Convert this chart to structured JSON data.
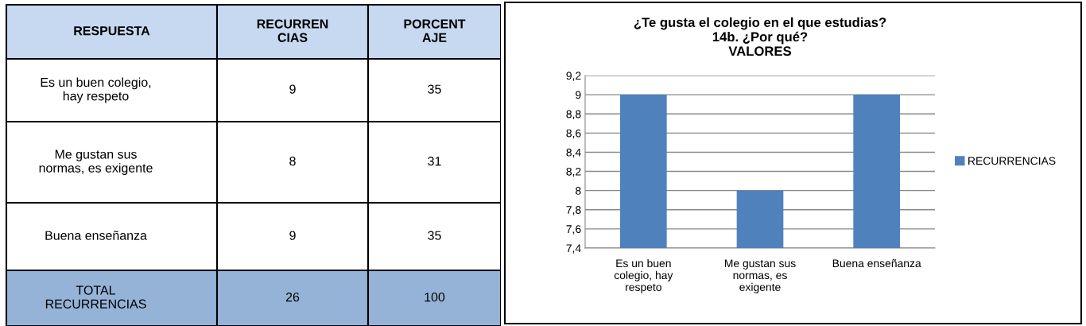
{
  "chart_data": [
    {
      "type": "other",
      "categories": [
        "RESPUESTA",
        "RECURREN\nCIAS",
        "PORCENT\nAJE"
      ],
      "y_categories": [
        "Es un buen colegio,\nhay respeto",
        "Me gustan sus\nnormas, es exigente",
        "Buena enseñanza",
        "TOTAL\nRECURRENCIAS"
      ],
      "cell_labels": [
        [
          "9",
          "35"
        ],
        [
          "8",
          "31"
        ],
        [
          "9",
          "35"
        ],
        [
          "26",
          "100"
        ]
      ]
    },
    {
      "type": "bar",
      "title": "¿Te gusta el colegio en el que estudias?\n14b. ¿Por qué?\nVALORES",
      "categories": [
        "Es un buen\ncolegio, hay\nrespeto",
        "Me gustan sus\nnormas, es\nexigente",
        "Buena enseñanza"
      ],
      "series": [
        {
          "name": "RECURRENCIAS",
          "color": "#4f81bd",
          "values": [
            9,
            8,
            9
          ]
        }
      ],
      "ylim": [
        7.4,
        9.2
      ],
      "yticks": [
        {
          "value": 7.4,
          "label": "7,4"
        },
        {
          "value": 7.6,
          "label": "7,6"
        },
        {
          "value": 7.8,
          "label": "7,8"
        },
        {
          "value": 8,
          "label": "8"
        },
        {
          "value": 8.2,
          "label": "8,2"
        },
        {
          "value": 8.4,
          "label": "8,4"
        },
        {
          "value": 8.6,
          "label": "8,6"
        },
        {
          "value": 8.8,
          "label": "8,8"
        },
        {
          "value": 9,
          "label": "9"
        },
        {
          "value": 9.2,
          "label": "9,2"
        }
      ],
      "grid": "y",
      "legend": "right"
    }
  ]
}
